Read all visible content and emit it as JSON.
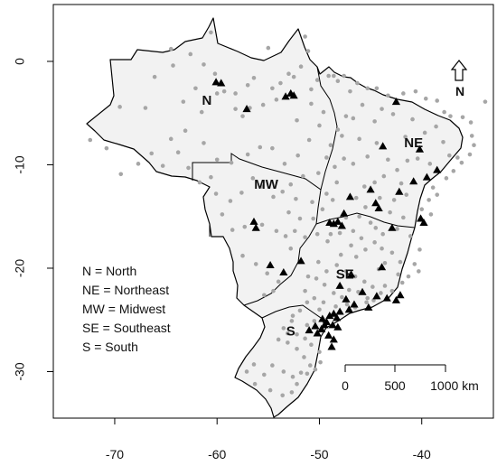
{
  "axes": {
    "x_ticks": [
      -70,
      -60,
      -50,
      -40
    ],
    "y_ticks": [
      0,
      -10,
      -20,
      -30
    ],
    "xlim": [
      -76,
      -33
    ],
    "ylim": [
      -34.5,
      5.5
    ]
  },
  "regions": [
    {
      "code": "N",
      "lon": -61,
      "lat": -4.2
    },
    {
      "code": "NE",
      "lon": -40.8,
      "lat": -8.3
    },
    {
      "code": "MW",
      "lon": -55.2,
      "lat": -12.3
    },
    {
      "code": "SE",
      "lon": -47.5,
      "lat": -21.0
    },
    {
      "code": "S",
      "lon": -52.8,
      "lat": -26.5
    }
  ],
  "legend": {
    "entries": [
      "N = North",
      "NE = Northeast",
      "MW = Midwest",
      "SE = Southeast",
      "S = South"
    ]
  },
  "scale_bar": {
    "labels": [
      "0",
      "500",
      "1000 km"
    ]
  },
  "north_arrow": {
    "label": "N"
  },
  "colors": {
    "land": "#f2f2f2",
    "border": "#000000",
    "gray_points": "#a6a6a6",
    "black_triangles": "#000000"
  },
  "triangles": [
    [
      -60.1,
      -2.0
    ],
    [
      -59.6,
      -2.1
    ],
    [
      -57.1,
      -4.6
    ],
    [
      -53.3,
      -3.4
    ],
    [
      -52.8,
      -3.1
    ],
    [
      -52.5,
      -3.3
    ],
    [
      -42.5,
      -3.9
    ],
    [
      -43.8,
      -8.2
    ],
    [
      -40.2,
      -8.5
    ],
    [
      -38.5,
      -10.5
    ],
    [
      -39.5,
      -11.2
    ],
    [
      -40.8,
      -11.6
    ],
    [
      -42.2,
      -12.6
    ],
    [
      -45.0,
      -12.4
    ],
    [
      -47.0,
      -13.1
    ],
    [
      -47.6,
      -14.7
    ],
    [
      -47.8,
      -15.9
    ],
    [
      -48.2,
      -15.5
    ],
    [
      -48.6,
      -15.7
    ],
    [
      -49.0,
      -15.6
    ],
    [
      -56.4,
      -15.5
    ],
    [
      -56.2,
      -16.1
    ],
    [
      -53.5,
      -20.4
    ],
    [
      -54.8,
      -19.7
    ],
    [
      -51.8,
      -19.3
    ],
    [
      -44.5,
      -13.7
    ],
    [
      -44.2,
      -14.2
    ],
    [
      -42.9,
      -16.1
    ],
    [
      -40.1,
      -15.2
    ],
    [
      -39.8,
      -15.6
    ],
    [
      -43.9,
      -19.9
    ],
    [
      -46.9,
      -20.6
    ],
    [
      -48.0,
      -21.7
    ],
    [
      -45.8,
      -22.3
    ],
    [
      -44.4,
      -22.7
    ],
    [
      -43.4,
      -22.9
    ],
    [
      -42.1,
      -22.6
    ],
    [
      -42.5,
      -23.1
    ],
    [
      -46.6,
      -23.5
    ],
    [
      -47.1,
      -24.0
    ],
    [
      -48.0,
      -24.2
    ],
    [
      -48.3,
      -24.8
    ],
    [
      -48.6,
      -24.4
    ],
    [
      -49.0,
      -24.6
    ],
    [
      -49.3,
      -25.2
    ],
    [
      -49.5,
      -25.5
    ],
    [
      -48.7,
      -25.5
    ],
    [
      -48.2,
      -25.7
    ],
    [
      -49.8,
      -25.9
    ],
    [
      -50.2,
      -26.3
    ],
    [
      -49.1,
      -26.5
    ],
    [
      -48.6,
      -26.9
    ],
    [
      -48.8,
      -27.6
    ],
    [
      -50.4,
      -25.6
    ],
    [
      -51.0,
      -26.0
    ],
    [
      -49.7,
      -24.9
    ],
    [
      -47.4,
      -23.0
    ],
    [
      -45.2,
      -23.8
    ]
  ],
  "points": [
    [
      -64.3,
      -0.4
    ],
    [
      -62.1,
      -2.6
    ],
    [
      -60.0,
      -3.1
    ],
    [
      -59.3,
      -2.9
    ],
    [
      -58.2,
      -4.6
    ],
    [
      -57.5,
      -5.3
    ],
    [
      -56.8,
      -4.5
    ],
    [
      -55.5,
      -4.2
    ],
    [
      -54.6,
      -2.6
    ],
    [
      -54.2,
      -3.7
    ],
    [
      -53.8,
      -2.1
    ],
    [
      -53.0,
      -1.2
    ],
    [
      -51.8,
      -0.5
    ],
    [
      -51.1,
      1.0
    ],
    [
      -50.2,
      -1.8
    ],
    [
      -49.1,
      -1.4
    ],
    [
      -48.6,
      -1.4
    ],
    [
      -48.2,
      -1.9
    ],
    [
      -47.6,
      -1.4
    ],
    [
      -47.0,
      -2.9
    ],
    [
      -46.3,
      -2.1
    ],
    [
      -45.3,
      -2.6
    ],
    [
      -44.4,
      -2.6
    ],
    [
      -43.3,
      -3.3
    ],
    [
      -41.8,
      -3.1
    ],
    [
      -40.6,
      -2.9
    ],
    [
      -39.6,
      -3.6
    ],
    [
      -38.5,
      -3.8
    ],
    [
      -37.8,
      -4.9
    ],
    [
      -37.2,
      -5.3
    ],
    [
      -36.0,
      -5.4
    ],
    [
      -35.2,
      -5.9
    ],
    [
      -35.1,
      -7.2
    ],
    [
      -34.9,
      -8.1
    ],
    [
      -35.3,
      -9.0
    ],
    [
      -36.1,
      -9.8
    ],
    [
      -36.9,
      -10.6
    ],
    [
      -37.3,
      -9.1
    ],
    [
      -37.9,
      -7.8
    ],
    [
      -38.6,
      -6.3
    ],
    [
      -39.7,
      -6.9
    ],
    [
      -40.9,
      -5.6
    ],
    [
      -41.6,
      -7.3
    ],
    [
      -42.8,
      -5.1
    ],
    [
      -43.9,
      -4.6
    ],
    [
      -44.6,
      -5.8
    ],
    [
      -45.8,
      -4.2
    ],
    [
      -46.7,
      -5.5
    ],
    [
      -47.4,
      -5.3
    ],
    [
      -47.8,
      -7.2
    ],
    [
      -48.2,
      -6.6
    ],
    [
      -48.9,
      -8.1
    ],
    [
      -48.5,
      -10.2
    ],
    [
      -48.3,
      -11.7
    ],
    [
      -47.6,
      -9.4
    ],
    [
      -46.7,
      -9.9
    ],
    [
      -46.1,
      -7.5
    ],
    [
      -45.3,
      -9.2
    ],
    [
      -44.4,
      -7.9
    ],
    [
      -43.3,
      -9.5
    ],
    [
      -42.4,
      -10.5
    ],
    [
      -41.4,
      -9.6
    ],
    [
      -40.4,
      -9.4
    ],
    [
      -39.2,
      -9.9
    ],
    [
      -38.9,
      -12.2
    ],
    [
      -38.5,
      -12.9
    ],
    [
      -39.3,
      -13.4
    ],
    [
      -39.1,
      -14.8
    ],
    [
      -40.0,
      -14.3
    ],
    [
      -41.5,
      -12.9
    ],
    [
      -42.7,
      -13.4
    ],
    [
      -43.7,
      -11.1
    ],
    [
      -44.6,
      -11.7
    ],
    [
      -45.6,
      -12.1
    ],
    [
      -46.4,
      -13.2
    ],
    [
      -45.5,
      -14.1
    ],
    [
      -46.1,
      -15.0
    ],
    [
      -45.0,
      -15.6
    ],
    [
      -43.8,
      -16.7
    ],
    [
      -42.4,
      -16.2
    ],
    [
      -41.1,
      -16.9
    ],
    [
      -40.2,
      -18.2
    ],
    [
      -40.7,
      -19.6
    ],
    [
      -40.3,
      -20.3
    ],
    [
      -41.3,
      -20.8
    ],
    [
      -42.1,
      -19.4
    ],
    [
      -42.9,
      -18.5
    ],
    [
      -43.6,
      -19.5
    ],
    [
      -44.2,
      -20.1
    ],
    [
      -43.9,
      -18.1
    ],
    [
      -44.6,
      -17.5
    ],
    [
      -45.5,
      -18.2
    ],
    [
      -46.4,
      -18.9
    ],
    [
      -46.9,
      -17.8
    ],
    [
      -47.9,
      -18.7
    ],
    [
      -48.3,
      -19.7
    ],
    [
      -47.4,
      -20.3
    ],
    [
      -46.5,
      -20.8
    ],
    [
      -45.6,
      -21.3
    ],
    [
      -44.8,
      -21.8
    ],
    [
      -43.6,
      -21.7
    ],
    [
      -42.9,
      -22.2
    ],
    [
      -41.9,
      -21.4
    ],
    [
      -42.3,
      -20.6
    ],
    [
      -44.0,
      -22.4
    ],
    [
      -45.3,
      -22.9
    ],
    [
      -46.2,
      -22.3
    ],
    [
      -47.1,
      -22.1
    ],
    [
      -47.8,
      -22.8
    ],
    [
      -48.6,
      -22.4
    ],
    [
      -49.5,
      -21.6
    ],
    [
      -50.3,
      -21.0
    ],
    [
      -51.1,
      -20.8
    ],
    [
      -51.4,
      -22.2
    ],
    [
      -50.5,
      -22.9
    ],
    [
      -49.6,
      -23.3
    ],
    [
      -48.4,
      -23.7
    ],
    [
      -47.3,
      -23.5
    ],
    [
      -46.5,
      -23.8
    ],
    [
      -45.4,
      -23.3
    ],
    [
      -44.7,
      -23.1
    ],
    [
      -49.3,
      -20.3
    ],
    [
      -50.1,
      -19.4
    ],
    [
      -49.2,
      -17.4
    ],
    [
      -50.2,
      -16.7
    ],
    [
      -51.4,
      -17.0
    ],
    [
      -52.4,
      -16.4
    ],
    [
      -53.3,
      -16.9
    ],
    [
      -54.2,
      -16.4
    ],
    [
      -55.6,
      -15.8
    ],
    [
      -57.3,
      -16.0
    ],
    [
      -58.5,
      -16.3
    ],
    [
      -57.5,
      -18.8
    ],
    [
      -56.2,
      -19.6
    ],
    [
      -55.1,
      -20.5
    ],
    [
      -54.5,
      -22.2
    ],
    [
      -55.4,
      -22.6
    ],
    [
      -54.0,
      -21.3
    ],
    [
      -52.8,
      -18.1
    ],
    [
      -51.9,
      -15.2
    ],
    [
      -53.0,
      -14.6
    ],
    [
      -54.5,
      -13.1
    ],
    [
      -55.6,
      -12.1
    ],
    [
      -56.5,
      -11.3
    ],
    [
      -57.6,
      -12.7
    ],
    [
      -58.7,
      -13.5
    ],
    [
      -59.5,
      -14.8
    ],
    [
      -60.1,
      -12.8
    ],
    [
      -60.6,
      -11.2
    ],
    [
      -61.7,
      -11.7
    ],
    [
      -62.8,
      -10.3
    ],
    [
      -63.8,
      -8.8
    ],
    [
      -65.3,
      -10.1
    ],
    [
      -67.7,
      -9.9
    ],
    [
      -69.4,
      -10.9
    ],
    [
      -70.8,
      -8.4
    ],
    [
      -72.4,
      -7.6
    ],
    [
      -66.4,
      -8.9
    ],
    [
      -64.5,
      -7.5
    ],
    [
      -63.1,
      -6.7
    ],
    [
      -61.3,
      -7.9
    ],
    [
      -60.0,
      -9.5
    ],
    [
      -58.6,
      -9.8
    ],
    [
      -57.0,
      -9.0
    ],
    [
      -55.8,
      -8.3
    ],
    [
      -54.6,
      -8.4
    ],
    [
      -53.4,
      -9.9
    ],
    [
      -52.1,
      -9.1
    ],
    [
      -51.0,
      -7.6
    ],
    [
      -50.0,
      -6.2
    ],
    [
      -50.8,
      -4.1
    ],
    [
      -52.2,
      -5.7
    ],
    [
      -49.6,
      -4.9
    ],
    [
      -49.3,
      -9.3
    ],
    [
      -50.1,
      -10.8
    ],
    [
      -49.3,
      -12.8
    ],
    [
      -50.7,
      -13.6
    ],
    [
      -49.7,
      -14.3
    ],
    [
      -48.7,
      -13.4
    ],
    [
      -47.4,
      -15.1
    ],
    [
      -48.0,
      -16.6
    ],
    [
      -48.9,
      -16.7
    ],
    [
      -50.6,
      -15.2
    ],
    [
      -52.3,
      -13.3
    ],
    [
      -51.6,
      -11.1
    ],
    [
      -52.8,
      -11.9
    ],
    [
      -53.6,
      -12.6
    ],
    [
      -46.7,
      -16.4
    ],
    [
      -45.9,
      -17.1
    ],
    [
      -44.5,
      -16.1
    ],
    [
      -41.8,
      -15.1
    ],
    [
      -43.1,
      -14.6
    ],
    [
      -44.1,
      -13.2
    ],
    [
      -42.0,
      -11.8
    ],
    [
      -37.6,
      -11.3
    ],
    [
      -36.5,
      -9.3
    ],
    [
      -58.2,
      -3.1
    ],
    [
      -61.5,
      -4.9
    ],
    [
      -63.3,
      -3.9
    ],
    [
      -67.0,
      -4.5
    ],
    [
      -69.5,
      -4.4
    ],
    [
      -66.1,
      -1.5
    ],
    [
      -64.5,
      1.2
    ],
    [
      -61.3,
      -0.3
    ],
    [
      -60.6,
      2.8
    ],
    [
      -62.6,
      0.7
    ],
    [
      -60.2,
      -1.2
    ],
    [
      -57.0,
      -2.3
    ],
    [
      -56.4,
      -1.6
    ],
    [
      -55.0,
      1.3
    ],
    [
      -51.4,
      2.4
    ],
    [
      -52.5,
      -1.5
    ],
    [
      -50.8,
      -2.7
    ],
    [
      -51.9,
      -24.1
    ],
    [
      -52.7,
      -25.1
    ],
    [
      -53.5,
      -25.8
    ],
    [
      -54.0,
      -26.9
    ],
    [
      -53.1,
      -27.2
    ],
    [
      -52.2,
      -27.8
    ],
    [
      -51.5,
      -28.6
    ],
    [
      -50.9,
      -29.4
    ],
    [
      -51.8,
      -30.1
    ],
    [
      -52.6,
      -30.5
    ],
    [
      -53.5,
      -30.0
    ],
    [
      -54.6,
      -29.4
    ],
    [
      -55.4,
      -30.3
    ],
    [
      -56.4,
      -29.3
    ],
    [
      -57.1,
      -30.0
    ],
    [
      -56.3,
      -31.2
    ],
    [
      -54.8,
      -31.8
    ],
    [
      -53.6,
      -32.3
    ],
    [
      -52.7,
      -32.0
    ],
    [
      -52.2,
      -31.2
    ],
    [
      -51.2,
      -30.2
    ],
    [
      -50.4,
      -29.8
    ],
    [
      -49.9,
      -29.1
    ],
    [
      -50.0,
      -28.1
    ],
    [
      -50.8,
      -27.4
    ],
    [
      -51.4,
      -26.8
    ],
    [
      -52.2,
      -26.4
    ],
    [
      -53.1,
      -26.3
    ],
    [
      -52.6,
      -24.6
    ],
    [
      -51.2,
      -23.3
    ],
    [
      -50.0,
      -24.0
    ],
    [
      -50.5,
      -25.1
    ],
    [
      -51.2,
      -25.5
    ],
    [
      -33.8,
      -3.9
    ]
  ]
}
